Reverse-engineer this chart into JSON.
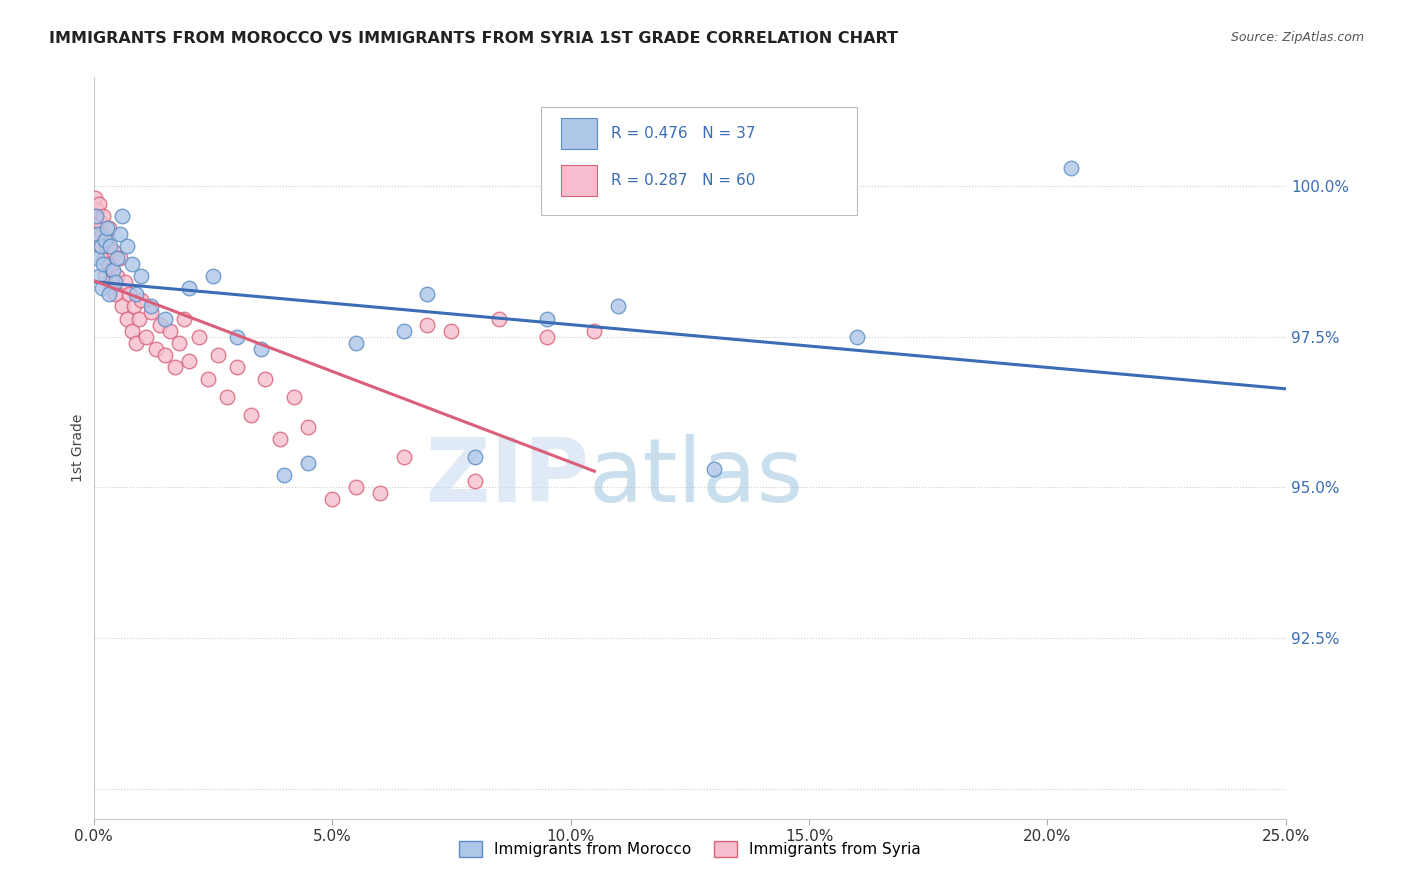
{
  "title": "IMMIGRANTS FROM MOROCCO VS IMMIGRANTS FROM SYRIA 1ST GRADE CORRELATION CHART",
  "source": "Source: ZipAtlas.com",
  "ylabel_left": "1st Grade",
  "y_ticks": [
    90.0,
    92.5,
    95.0,
    97.5,
    100.0
  ],
  "y_tick_labels": [
    "",
    "92.5%",
    "95.0%",
    "97.5%",
    "100.0%"
  ],
  "x_ticks": [
    0.0,
    5.0,
    10.0,
    15.0,
    20.0,
    25.0
  ],
  "x_tick_labels": [
    "0.0%",
    "5.0%",
    "10.0%",
    "15.0%",
    "20.0%",
    "25.0%"
  ],
  "xlim": [
    0.0,
    25.0
  ],
  "ylim": [
    89.5,
    101.8
  ],
  "morocco_color": "#aec6e8",
  "syria_color": "#f5bece",
  "morocco_edge": "#5b8ec4",
  "syria_edge": "#d9607a",
  "trendline_morocco": "#3a6db5",
  "trendline_syria": "#d95f7a",
  "R_morocco": 0.476,
  "N_morocco": 37,
  "R_syria": 0.287,
  "N_syria": 60,
  "legend_morocco": "Immigrants from Morocco",
  "legend_syria": "Immigrants from Syria",
  "watermark_zip": "ZIP",
  "watermark_atlas": "atlas",
  "morocco_x": [
    0.05,
    0.08,
    0.1,
    0.12,
    0.15,
    0.18,
    0.2,
    0.25,
    0.28,
    0.32,
    0.35,
    0.4,
    0.45,
    0.5,
    0.55,
    0.6,
    0.7,
    0.8,
    0.9,
    1.0,
    1.2,
    1.5,
    2.0,
    2.5,
    3.0,
    3.5,
    4.0,
    4.5,
    5.5,
    6.5,
    7.0,
    8.0,
    9.5,
    11.0,
    13.0,
    16.0,
    20.5
  ],
  "morocco_y": [
    99.5,
    98.8,
    99.2,
    98.5,
    99.0,
    98.3,
    98.7,
    99.1,
    99.3,
    98.2,
    99.0,
    98.6,
    98.4,
    98.8,
    99.2,
    99.5,
    99.0,
    98.7,
    98.2,
    98.5,
    98.0,
    97.8,
    98.3,
    98.5,
    97.5,
    97.3,
    95.2,
    95.4,
    97.4,
    97.6,
    98.2,
    95.5,
    97.8,
    98.0,
    95.3,
    97.5,
    100.3
  ],
  "syria_x": [
    0.03,
    0.05,
    0.07,
    0.09,
    0.11,
    0.13,
    0.15,
    0.17,
    0.19,
    0.21,
    0.23,
    0.25,
    0.28,
    0.3,
    0.33,
    0.36,
    0.39,
    0.42,
    0.45,
    0.5,
    0.55,
    0.6,
    0.65,
    0.7,
    0.75,
    0.8,
    0.85,
    0.9,
    0.95,
    1.0,
    1.1,
    1.2,
    1.3,
    1.4,
    1.5,
    1.6,
    1.7,
    1.8,
    1.9,
    2.0,
    2.2,
    2.4,
    2.6,
    2.8,
    3.0,
    3.3,
    3.6,
    3.9,
    4.2,
    4.5,
    5.0,
    5.5,
    6.0,
    6.5,
    7.0,
    7.5,
    8.0,
    8.5,
    9.5,
    10.5
  ],
  "syria_y": [
    99.8,
    99.5,
    99.6,
    99.3,
    99.7,
    99.4,
    99.0,
    99.2,
    99.5,
    98.8,
    99.1,
    98.5,
    99.0,
    98.7,
    99.3,
    98.3,
    98.6,
    98.9,
    98.2,
    98.5,
    98.8,
    98.0,
    98.4,
    97.8,
    98.2,
    97.6,
    98.0,
    97.4,
    97.8,
    98.1,
    97.5,
    97.9,
    97.3,
    97.7,
    97.2,
    97.6,
    97.0,
    97.4,
    97.8,
    97.1,
    97.5,
    96.8,
    97.2,
    96.5,
    97.0,
    96.2,
    96.8,
    95.8,
    96.5,
    96.0,
    94.8,
    95.0,
    94.9,
    95.5,
    97.7,
    97.6,
    95.1,
    97.8,
    97.5,
    97.6
  ]
}
